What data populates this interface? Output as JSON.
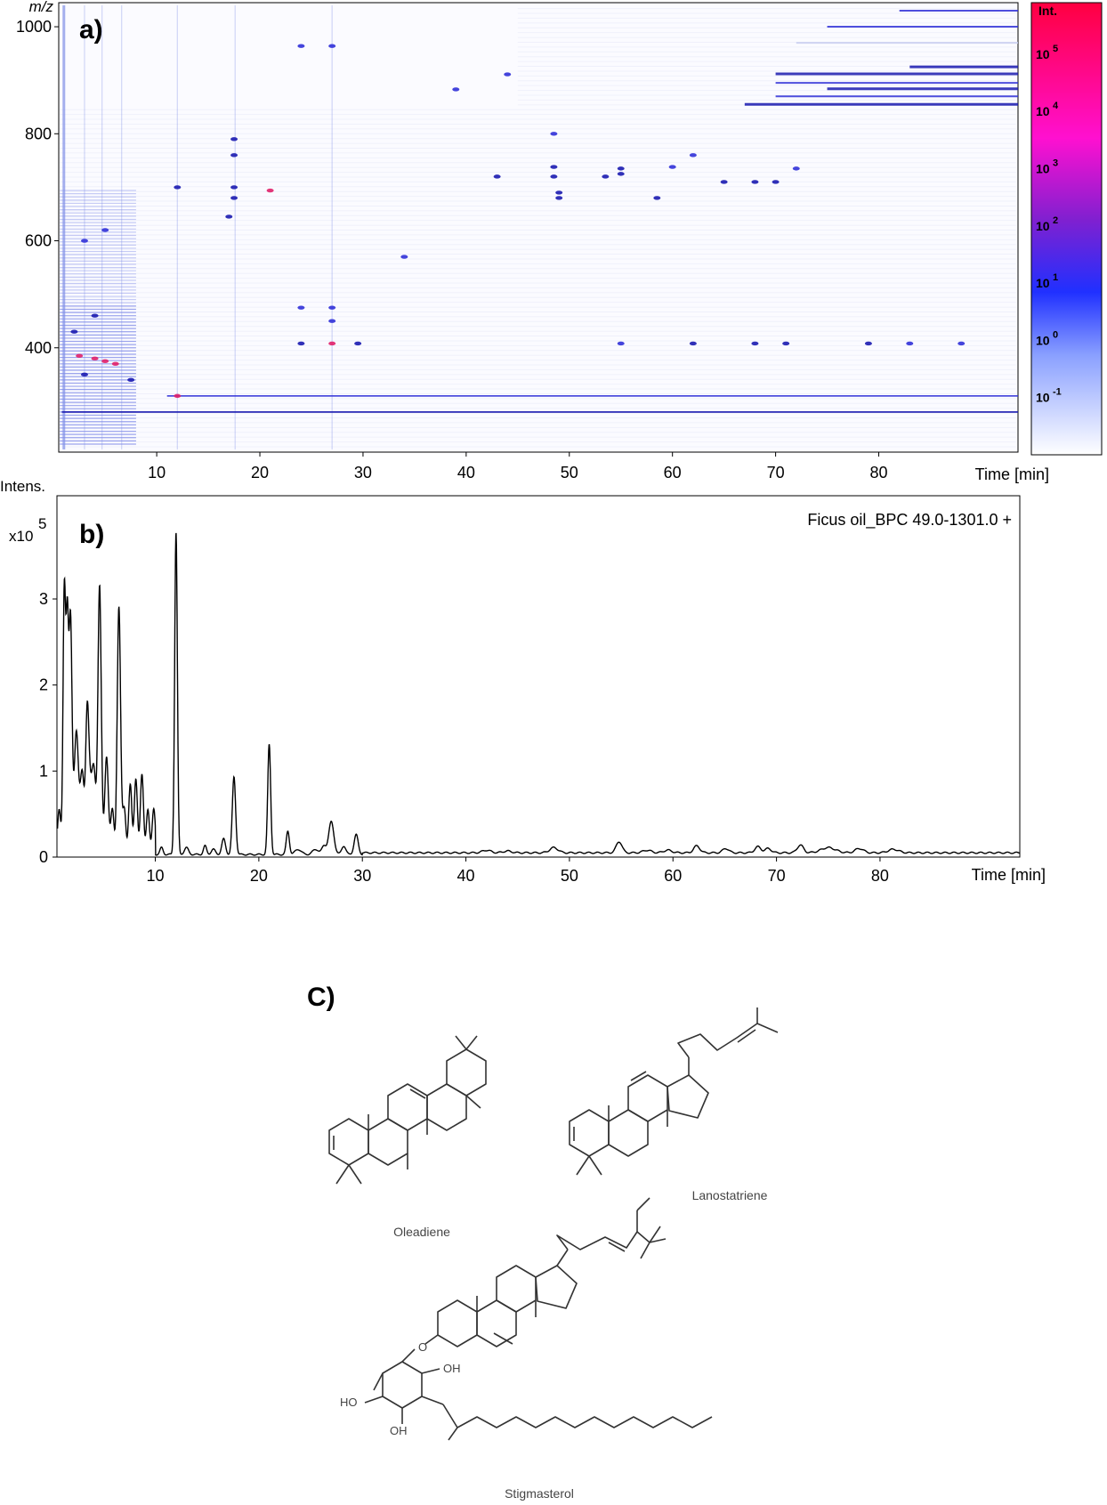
{
  "panels": {
    "a_label": "a)",
    "b_label": "b)",
    "c_label": "C)"
  },
  "chart_data": [
    {
      "type": "heatmap",
      "panel": "a)",
      "ylabel": "m/z",
      "xlabel": "Time [min]",
      "xlim": [
        0.5,
        93.5
      ],
      "ylim": [
        205,
        1045
      ],
      "x_ticks": [
        10,
        20,
        30,
        40,
        50,
        60,
        70,
        80
      ],
      "y_ticks": [
        400,
        600,
        800,
        1000
      ],
      "colorbar": {
        "title": "Int.",
        "scale": "log",
        "ticks": [
          {
            "value": 5,
            "label": "10",
            "exp": "5"
          },
          {
            "value": 4,
            "label": "10",
            "exp": "4"
          },
          {
            "value": 3,
            "label": "10",
            "exp": "3"
          },
          {
            "value": 2,
            "label": "10",
            "exp": "2"
          },
          {
            "value": 1,
            "label": "10",
            "exp": "1"
          },
          {
            "value": 0,
            "label": "10",
            "exp": "0"
          },
          {
            "value": -1,
            "label": "10",
            "exp": "-1"
          }
        ],
        "colors": [
          "#ffffff",
          "#2030ff",
          "#8020d0",
          "#ff10d0",
          "#ff0040"
        ]
      },
      "colors": {
        "strong": "#1a1ab0",
        "medium": "#3030d8",
        "faint": "#c8cef0",
        "hot": "#e0206a"
      },
      "grid": false,
      "continuous_traces": [
        {
          "mz": 280,
          "x": [
            0.8,
            93.5
          ],
          "level": "strong"
        },
        {
          "mz": 310,
          "x": [
            11,
            93.5
          ],
          "level": "medium"
        }
      ],
      "features": [
        {
          "x": 2.5,
          "mz": 385,
          "intensity": "hot"
        },
        {
          "x": 4.0,
          "mz": 380,
          "intensity": "hot"
        },
        {
          "x": 5.0,
          "mz": 375,
          "intensity": "hot"
        },
        {
          "x": 3.0,
          "mz": 350,
          "intensity": "strong"
        },
        {
          "x": 6.0,
          "mz": 370,
          "intensity": "hot"
        },
        {
          "x": 7.5,
          "mz": 340,
          "intensity": "strong"
        },
        {
          "x": 2.0,
          "mz": 430,
          "intensity": "strong"
        },
        {
          "x": 4.0,
          "mz": 460,
          "intensity": "strong"
        },
        {
          "x": 3.0,
          "mz": 600,
          "intensity": "medium"
        },
        {
          "x": 5.0,
          "mz": 620,
          "intensity": "medium"
        },
        {
          "x": 12.0,
          "mz": 310,
          "intensity": "hot"
        },
        {
          "x": 12.0,
          "mz": 700,
          "intensity": "strong"
        },
        {
          "x": 17.5,
          "mz": 790,
          "intensity": "strong"
        },
        {
          "x": 17.5,
          "mz": 760,
          "intensity": "strong"
        },
        {
          "x": 17.5,
          "mz": 700,
          "intensity": "strong"
        },
        {
          "x": 17.5,
          "mz": 680,
          "intensity": "strong"
        },
        {
          "x": 17.0,
          "mz": 645,
          "intensity": "strong"
        },
        {
          "x": 21.0,
          "mz": 694,
          "intensity": "hot"
        },
        {
          "x": 24.0,
          "mz": 964,
          "intensity": "medium"
        },
        {
          "x": 27.0,
          "mz": 964,
          "intensity": "medium"
        },
        {
          "x": 24.0,
          "mz": 408,
          "intensity": "strong"
        },
        {
          "x": 27.0,
          "mz": 408,
          "intensity": "hot"
        },
        {
          "x": 29.5,
          "mz": 408,
          "intensity": "strong"
        },
        {
          "x": 24.0,
          "mz": 475,
          "intensity": "medium"
        },
        {
          "x": 27.0,
          "mz": 475,
          "intensity": "medium"
        },
        {
          "x": 27.0,
          "mz": 450,
          "intensity": "medium"
        },
        {
          "x": 34.0,
          "mz": 570,
          "intensity": "medium"
        },
        {
          "x": 39.0,
          "mz": 883,
          "intensity": "medium"
        },
        {
          "x": 43.0,
          "mz": 720,
          "intensity": "strong"
        },
        {
          "x": 44.0,
          "mz": 911,
          "intensity": "medium"
        },
        {
          "x": 48.5,
          "mz": 738,
          "intensity": "strong"
        },
        {
          "x": 48.5,
          "mz": 720,
          "intensity": "strong"
        },
        {
          "x": 49.0,
          "mz": 690,
          "intensity": "strong"
        },
        {
          "x": 49.0,
          "mz": 680,
          "intensity": "strong"
        },
        {
          "x": 48.5,
          "mz": 800,
          "intensity": "medium"
        },
        {
          "x": 55.0,
          "mz": 735,
          "intensity": "strong"
        },
        {
          "x": 55.0,
          "mz": 725,
          "intensity": "strong"
        },
        {
          "x": 53.5,
          "mz": 720,
          "intensity": "strong"
        },
        {
          "x": 58.5,
          "mz": 680,
          "intensity": "strong"
        },
        {
          "x": 60.0,
          "mz": 738,
          "intensity": "medium"
        },
        {
          "x": 62.0,
          "mz": 760,
          "intensity": "medium"
        },
        {
          "x": 65.0,
          "mz": 710,
          "intensity": "strong"
        },
        {
          "x": 68.0,
          "mz": 710,
          "intensity": "strong"
        },
        {
          "x": 70.0,
          "mz": 710,
          "intensity": "strong"
        },
        {
          "x": 72.0,
          "mz": 735,
          "intensity": "medium"
        },
        {
          "x": 62.0,
          "mz": 408,
          "intensity": "strong"
        },
        {
          "x": 68.0,
          "mz": 408,
          "intensity": "strong"
        },
        {
          "x": 71.0,
          "mz": 408,
          "intensity": "strong"
        },
        {
          "x": 79.0,
          "mz": 408,
          "intensity": "strong"
        },
        {
          "x": 83.0,
          "mz": 408,
          "intensity": "medium"
        },
        {
          "x": 55.0,
          "mz": 408,
          "intensity": "medium"
        },
        {
          "x": 88.0,
          "mz": 408,
          "intensity": "medium"
        }
      ],
      "mz_bands": [
        {
          "mz": 1030,
          "x": [
            82,
            93.5
          ],
          "level": "medium"
        },
        {
          "mz": 1000,
          "x": [
            75,
            93.5
          ],
          "level": "medium"
        },
        {
          "mz": 970,
          "x": [
            72,
            93.5
          ],
          "level": "faint"
        },
        {
          "mz": 925,
          "x": [
            83,
            93.5
          ],
          "level": "strong"
        },
        {
          "mz": 912,
          "x": [
            70,
            93.5
          ],
          "level": "strong"
        },
        {
          "mz": 895,
          "x": [
            70,
            93.5
          ],
          "level": "medium"
        },
        {
          "mz": 884,
          "x": [
            75,
            93.5
          ],
          "level": "strong"
        },
        {
          "mz": 870,
          "x": [
            70,
            93.5
          ],
          "level": "medium"
        },
        {
          "mz": 855,
          "x": [
            67,
            93.5
          ],
          "level": "strong"
        }
      ]
    },
    {
      "type": "line",
      "panel": "b)",
      "ylabel": "Intens.",
      "ylabel_scale": "x10",
      "ylabel_scale_exp": "5",
      "xlabel": "Time [min]",
      "legend": "Ficus oil_BPC 49.0-1301.0 +",
      "legend_position": "top-right",
      "xlim": [
        0.5,
        93.5
      ],
      "ylim": [
        0,
        4.2
      ],
      "x_ticks": [
        10,
        20,
        30,
        40,
        50,
        60,
        70,
        80
      ],
      "y_ticks": [
        0,
        1,
        2,
        3
      ],
      "grid": false,
      "series": [
        {
          "baseline": 0.05,
          "peaks": [
            {
              "t": 1.2,
              "h": 2.6,
              "w": 0.12
            },
            {
              "t": 1.5,
              "h": 2.45,
              "w": 0.12
            },
            {
              "t": 1.8,
              "h": 2.2,
              "w": 0.14
            },
            {
              "t": 2.3,
              "h": 0.95,
              "w": 0.2
            },
            {
              "t": 2.8,
              "h": 0.6,
              "w": 0.2
            },
            {
              "t": 3.4,
              "h": 1.4,
              "w": 0.15
            },
            {
              "t": 3.9,
              "h": 0.8,
              "w": 0.2
            },
            {
              "t": 4.6,
              "h": 2.7,
              "w": 0.16
            },
            {
              "t": 5.3,
              "h": 0.6,
              "w": 0.2
            },
            {
              "t": 6.5,
              "h": 2.4,
              "w": 0.16
            },
            {
              "t": 7.6,
              "h": 0.3,
              "w": 0.15
            },
            {
              "t": 8.1,
              "h": 0.35,
              "w": 0.15
            },
            {
              "t": 8.7,
              "h": 0.4,
              "w": 0.15
            },
            {
              "t": 10.6,
              "h": 0.08,
              "w": 0.15
            },
            {
              "t": 12.0,
              "h": 3.75,
              "w": 0.13
            },
            {
              "t": 13.0,
              "h": 0.08,
              "w": 0.2
            },
            {
              "t": 14.8,
              "h": 0.1,
              "w": 0.15
            },
            {
              "t": 15.6,
              "h": 0.06,
              "w": 0.2
            },
            {
              "t": 16.6,
              "h": 0.18,
              "w": 0.18
            },
            {
              "t": 17.6,
              "h": 0.9,
              "w": 0.16
            },
            {
              "t": 21.0,
              "h": 1.28,
              "w": 0.14
            },
            {
              "t": 22.8,
              "h": 0.27,
              "w": 0.15
            },
            {
              "t": 23.8,
              "h": 0.06,
              "w": 0.3
            },
            {
              "t": 25.5,
              "h": 0.06,
              "w": 0.3
            },
            {
              "t": 26.3,
              "h": 0.1,
              "w": 0.2
            },
            {
              "t": 27.0,
              "h": 0.38,
              "w": 0.25
            },
            {
              "t": 28.2,
              "h": 0.1,
              "w": 0.2
            },
            {
              "t": 29.4,
              "h": 0.23,
              "w": 0.2
            },
            {
              "t": 42.0,
              "h": 0.03,
              "w": 0.4
            },
            {
              "t": 44.0,
              "h": 0.02,
              "w": 0.4
            },
            {
              "t": 48.5,
              "h": 0.06,
              "w": 0.4
            },
            {
              "t": 54.8,
              "h": 0.13,
              "w": 0.28
            },
            {
              "t": 57.5,
              "h": 0.03,
              "w": 0.4
            },
            {
              "t": 59.5,
              "h": 0.03,
              "w": 0.4
            },
            {
              "t": 62.3,
              "h": 0.08,
              "w": 0.3
            },
            {
              "t": 65.1,
              "h": 0.05,
              "w": 0.3
            },
            {
              "t": 68.2,
              "h": 0.07,
              "w": 0.3
            },
            {
              "t": 69.2,
              "h": 0.05,
              "w": 0.3
            },
            {
              "t": 72.3,
              "h": 0.09,
              "w": 0.3
            },
            {
              "t": 75.0,
              "h": 0.06,
              "w": 0.7
            },
            {
              "t": 78.0,
              "h": 0.05,
              "w": 0.4
            },
            {
              "t": 81.3,
              "h": 0.04,
              "w": 0.5
            }
          ]
        }
      ]
    }
  ],
  "structures": {
    "oleadiene": "Oleadiene",
    "lanostatriene": "Lanostatriene",
    "stigmasterol": "Stigmasterol",
    "oh_1": "OH",
    "oh_2": "OH",
    "ho": "HO",
    "o_label": "O"
  }
}
